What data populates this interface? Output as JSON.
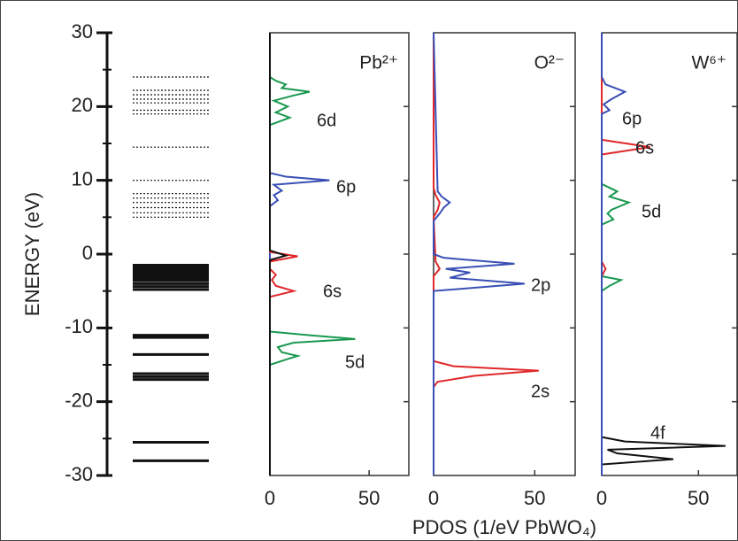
{
  "chart_data": [
    {
      "type": "levels",
      "ylabel": "ENERGY (eV)",
      "ylim": [
        -30,
        30
      ],
      "yticks": [
        -30,
        -20,
        -10,
        0,
        10,
        20,
        30
      ],
      "yminorticks": [
        -25,
        -15,
        -5,
        5,
        15,
        25
      ],
      "levels": [
        -28,
        -25.5,
        -17,
        -16.6,
        -16.2,
        -13.6,
        -11.3,
        -11,
        -4.8,
        -4.4,
        -4,
        -3.6,
        -3.3,
        -3,
        -2.7,
        -2.4,
        -2.1,
        -1.8,
        -1.5,
        5,
        5.6,
        6.3,
        7,
        7.6,
        8.2,
        10,
        14.5,
        19,
        19.5,
        20.5,
        21,
        21.6,
        22.2,
        24
      ],
      "level_styles": [
        "solid",
        "solid",
        "solid",
        "solid",
        "solid",
        "solid",
        "solid",
        "solid",
        "solid",
        "solid",
        "solid",
        "solid",
        "solid",
        "solid",
        "solid",
        "solid",
        "solid",
        "solid",
        "solid",
        "dotted",
        "dotted",
        "dotted",
        "dotted",
        "dotted",
        "dotted",
        "dotted",
        "dotted",
        "dotted",
        "dotted",
        "dotted",
        "dotted",
        "dotted",
        "dotted",
        "dotted"
      ]
    },
    {
      "type": "pdos",
      "title": "Pb²⁺",
      "xlim": [
        0,
        70
      ],
      "xticks": [
        0,
        50
      ],
      "ylim": [
        -30,
        30
      ],
      "yticks": [
        -20,
        -10,
        0,
        10,
        20
      ],
      "annotations": [
        "6d",
        "6p",
        "6s",
        "5d"
      ],
      "series": [
        {
          "color": "#1a9850",
          "y": [
            -30,
            -15,
            -14.3,
            -13.8,
            -13.3,
            -12.6,
            -12,
            -11.5,
            -11,
            -10.5,
            17.5,
            18.5,
            19.2,
            20,
            20.8,
            21.5,
            22,
            22.5,
            23,
            23.5,
            24,
            30
          ],
          "values": [
            0,
            0,
            8,
            14,
            6,
            4,
            12,
            43,
            20,
            0,
            0,
            10,
            3,
            9,
            2,
            12,
            20,
            6,
            8,
            3,
            0,
            0
          ]
        },
        {
          "color": "#3a4fb5",
          "y": [
            -30,
            6.5,
            7.3,
            8,
            8.6,
            9.4,
            10,
            10.5,
            11,
            30
          ],
          "values": [
            0,
            0,
            4,
            2,
            6,
            2,
            30,
            8,
            0,
            0
          ]
        },
        {
          "color": "#e0282a",
          "y": [
            -30,
            -5.8,
            -5,
            -4.3,
            -3.5,
            -2.8,
            -2,
            -1,
            -0.3,
            0.3,
            30
          ],
          "values": [
            0,
            0,
            12,
            3,
            1,
            3,
            0,
            0,
            14,
            0,
            0
          ]
        },
        {
          "color": "#111111",
          "y": [
            -30,
            -0.8,
            -0.2,
            0.5,
            30
          ],
          "values": [
            0,
            0,
            8,
            0,
            0
          ]
        }
      ]
    },
    {
      "type": "pdos",
      "title": "O²⁻",
      "xlabel": "PDOS (1/eV PbWO₄)",
      "xlim": [
        0,
        70
      ],
      "xticks": [
        0,
        50
      ],
      "ylim": [
        -30,
        30
      ],
      "yticks": [
        -20,
        -10,
        0,
        10,
        20
      ],
      "annotations": [
        "2p",
        "2s"
      ],
      "series": [
        {
          "color": "#e0282a",
          "y": [
            -30,
            -18,
            -17.3,
            -16.5,
            -15.8,
            -15.2,
            -14.5,
            -3,
            -2,
            -1,
            5,
            6,
            7,
            8,
            9,
            30
          ],
          "values": [
            0,
            0,
            2,
            20,
            52,
            10,
            0,
            0,
            3,
            1,
            0,
            2,
            3,
            1,
            0,
            0
          ]
        },
        {
          "color": "#3a4fb5",
          "y": [
            -30,
            -5,
            -4,
            -3.2,
            -2.5,
            -2,
            -1.3,
            -0.5,
            0,
            4.5,
            5.5,
            6.3,
            7,
            7.8,
            8.5,
            30
          ],
          "values": [
            0,
            0,
            45,
            8,
            18,
            6,
            40,
            5,
            0,
            0,
            3,
            5,
            8,
            4,
            2,
            0
          ]
        }
      ]
    },
    {
      "type": "pdos",
      "title": "W⁶⁺",
      "xlim": [
        0,
        70
      ],
      "xticks": [
        0,
        50
      ],
      "ylim": [
        -30,
        30
      ],
      "yticks": [
        -20,
        -10,
        0,
        10,
        20
      ],
      "annotations": [
        "6p",
        "6s",
        "5d",
        "4f"
      ],
      "series": [
        {
          "color": "#111111",
          "y": [
            -30,
            -28.5,
            -27.8,
            -27,
            -26.5,
            -26,
            -25.4,
            -24.8,
            30
          ],
          "values": [
            0,
            0,
            37,
            8,
            3,
            64,
            12,
            0,
            0
          ]
        },
        {
          "color": "#1a9850",
          "y": [
            -30,
            -5,
            -4.3,
            -3.5,
            -3,
            4,
            4.7,
            5.5,
            6,
            7,
            7.8,
            8.5,
            9.5,
            30
          ],
          "values": [
            0,
            0,
            4,
            10,
            0,
            0,
            6,
            3,
            5,
            14,
            4,
            8,
            0,
            0
          ]
        },
        {
          "color": "#e0282a",
          "y": [
            -30,
            -3,
            -2,
            -1,
            13.5,
            14.5,
            15.5,
            30
          ],
          "values": [
            0,
            0,
            2,
            0,
            0,
            25,
            0,
            0
          ]
        },
        {
          "color": "#3a4fb5",
          "y": [
            -30,
            19,
            19.5,
            20.3,
            21,
            22,
            23,
            24,
            30
          ],
          "values": [
            0,
            0,
            4,
            1,
            5,
            12,
            2,
            0,
            0
          ]
        }
      ]
    }
  ]
}
